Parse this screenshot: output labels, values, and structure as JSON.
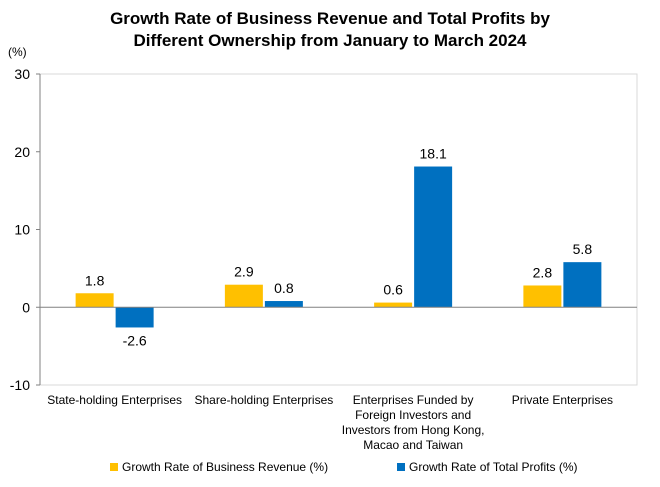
{
  "title_line1": "Growth Rate of Business Revenue and Total Profits by",
  "title_line2": "Different Ownership from January to March 2024",
  "chart_data": {
    "type": "bar",
    "title": "Growth Rate of Business Revenue and Total Profits by Different Ownership from January to March 2024",
    "ylabel": "(%)",
    "ylim": [
      -10,
      30
    ],
    "yticks": [
      -10,
      0,
      10,
      20,
      30
    ],
    "grid": false,
    "legend_position": "bottom",
    "categories": [
      [
        "State-holding Enterprises"
      ],
      [
        "Share-holding Enterprises"
      ],
      [
        "Enterprises Funded by",
        "Foreign Investors and",
        "Investors from Hong Kong,",
        "Macao and Taiwan"
      ],
      [
        "Private Enterprises"
      ]
    ],
    "series": [
      {
        "name": "Growth Rate of Business Revenue (%)",
        "color": "#FFC000",
        "values": [
          1.8,
          2.9,
          0.6,
          2.8
        ]
      },
      {
        "name": "Growth Rate of Total Profits (%)",
        "color": "#0070C0",
        "values": [
          -2.6,
          0.8,
          18.1,
          5.8
        ]
      }
    ]
  }
}
